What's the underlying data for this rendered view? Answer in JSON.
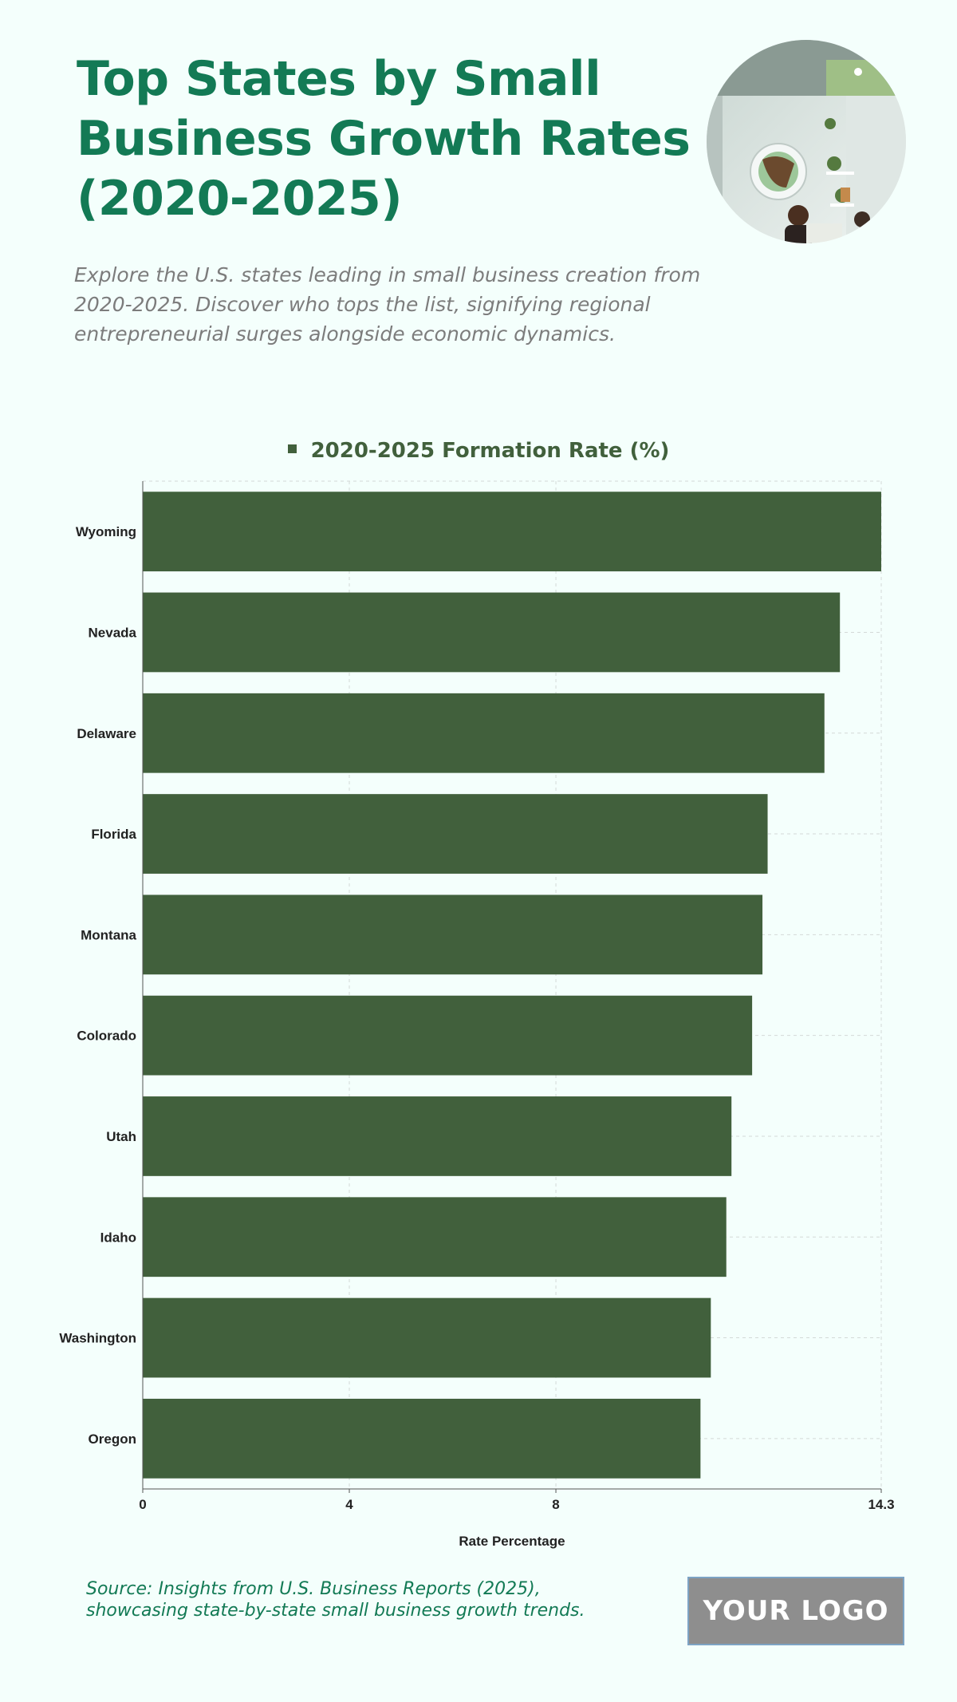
{
  "header": {
    "title": "Top States by Small Business Growth Rates (2020-2025)",
    "subtitle": "Explore the U.S. states leading in small business creation from 2020-2025. Discover who tops the list, signifying regional entrepreneurial surges alongside economic dynamics."
  },
  "chart_data": {
    "type": "bar",
    "orientation": "horizontal",
    "categories": [
      "Wyoming",
      "Nevada",
      "Delaware",
      "Florida",
      "Montana",
      "Colorado",
      "Utah",
      "Idaho",
      "Washington",
      "Oregon"
    ],
    "series": [
      {
        "name": "2020-2025 Formation Rate (%)",
        "values": [
          14.3,
          13.5,
          13.2,
          12.1,
          12.0,
          11.8,
          11.4,
          11.3,
          11.0,
          10.8
        ]
      }
    ],
    "xlabel": "Rate Percentage",
    "ylabel": "",
    "xlim": [
      0,
      14.3
    ],
    "xticks": [
      0,
      4,
      8,
      14.3
    ],
    "xtick_labels": [
      "0",
      "4",
      "8",
      "14.3"
    ],
    "grid": true,
    "legend_position": "top-center",
    "bar_color": "#41603c"
  },
  "footer": {
    "source": "Source: Insights from U.S. Business Reports (2025), showcasing state-by-state small business growth trends.",
    "logo_text": "YOUR LOGO"
  }
}
